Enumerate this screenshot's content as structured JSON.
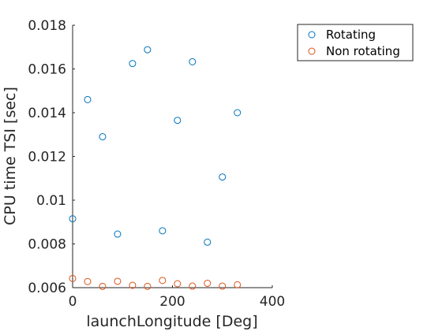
{
  "chart_data": {
    "type": "scatter",
    "title": "",
    "xlabel": "launchLongitude [Deg]",
    "ylabel": "CPU time TSI [sec]",
    "xlim": [
      0,
      400
    ],
    "ylim": [
      0.006,
      0.018
    ],
    "xticks": [
      0,
      200,
      400
    ],
    "xtick_labels": [
      "0",
      "200",
      "400"
    ],
    "yticks": [
      0.006,
      0.008,
      0.01,
      0.012,
      0.014,
      0.016,
      0.018
    ],
    "ytick_labels": [
      "0.006",
      "0.008",
      "0.01",
      "0.012",
      "0.014",
      "0.016",
      "0.018"
    ],
    "grid": false,
    "legend_position": "top-right",
    "series": [
      {
        "name": "Rotating",
        "color": "#0072BD",
        "marker": "circle-open",
        "x": [
          0,
          30,
          60,
          90,
          120,
          150,
          180,
          210,
          240,
          270,
          300,
          330
        ],
        "y": [
          0.00915,
          0.0146,
          0.0129,
          0.00845,
          0.01625,
          0.01688,
          0.0086,
          0.01365,
          0.01633,
          0.00808,
          0.01106,
          0.014
        ]
      },
      {
        "name": "Non rotating",
        "color": "#D95319",
        "marker": "circle-open",
        "x": [
          0,
          30,
          60,
          90,
          120,
          150,
          180,
          210,
          240,
          270,
          300,
          330
        ],
        "y": [
          0.00642,
          0.00628,
          0.00606,
          0.00629,
          0.00611,
          0.00606,
          0.00633,
          0.00618,
          0.00607,
          0.0062,
          0.00607,
          0.00613
        ]
      }
    ]
  }
}
